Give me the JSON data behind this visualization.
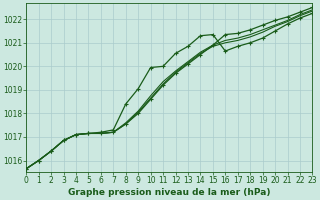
{
  "title": "Graphe pression niveau de la mer (hPa)",
  "bg_color": "#cce8e0",
  "grid_color": "#aacccc",
  "line_color": "#1a5c1a",
  "xlim": [
    0,
    23
  ],
  "ylim": [
    1015.5,
    1022.7
  ],
  "yticks": [
    1016,
    1017,
    1018,
    1019,
    1020,
    1021,
    1022
  ],
  "xticks": [
    0,
    1,
    2,
    3,
    4,
    5,
    6,
    7,
    8,
    9,
    10,
    11,
    12,
    13,
    14,
    15,
    16,
    17,
    18,
    19,
    20,
    21,
    22,
    23
  ],
  "series": [
    {
      "y": [
        1015.65,
        1016.0,
        1016.4,
        1016.85,
        1017.1,
        1017.15,
        1017.15,
        1017.2,
        1017.55,
        1018.0,
        1018.6,
        1019.2,
        1019.7,
        1020.1,
        1020.5,
        1020.9,
        1021.35,
        1021.4,
        1021.55,
        1021.75,
        1021.95,
        1022.1,
        1022.3,
        1022.5
      ],
      "marker": true,
      "lw": 0.9
    },
    {
      "y": [
        1015.65,
        1016.0,
        1016.4,
        1016.85,
        1017.1,
        1017.15,
        1017.2,
        1017.3,
        1018.4,
        1019.05,
        1019.95,
        1020.0,
        1020.55,
        1020.85,
        1021.3,
        1021.35,
        1020.65,
        1020.85,
        1021.0,
        1021.2,
        1021.5,
        1021.8,
        1022.05,
        1022.25
      ],
      "marker": true,
      "lw": 0.9
    },
    {
      "y": [
        1015.65,
        1016.0,
        1016.4,
        1016.85,
        1017.1,
        1017.15,
        1017.15,
        1017.2,
        1017.55,
        1018.05,
        1018.65,
        1019.25,
        1019.75,
        1020.15,
        1020.55,
        1020.85,
        1021.0,
        1021.1,
        1021.25,
        1021.45,
        1021.7,
        1021.9,
        1022.15,
        1022.35
      ],
      "marker": false,
      "lw": 0.8
    },
    {
      "y": [
        1015.65,
        1016.0,
        1016.4,
        1016.85,
        1017.1,
        1017.15,
        1017.15,
        1017.2,
        1017.6,
        1018.1,
        1018.75,
        1019.35,
        1019.8,
        1020.2,
        1020.6,
        1020.9,
        1021.1,
        1021.2,
        1021.35,
        1021.55,
        1021.75,
        1021.95,
        1022.2,
        1022.4
      ],
      "marker": false,
      "lw": 0.8
    }
  ]
}
